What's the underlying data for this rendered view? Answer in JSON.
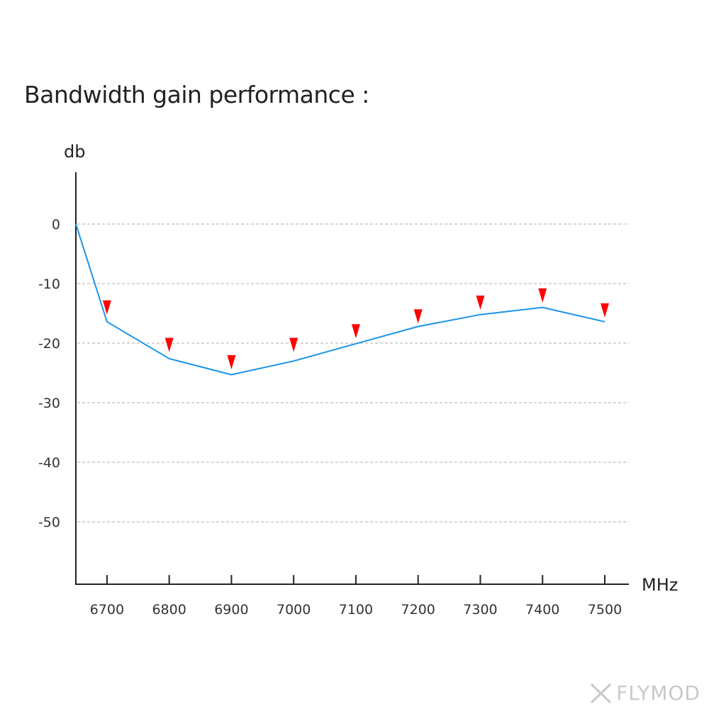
{
  "title": "Bandwidth gain performance :",
  "watermark": {
    "text": "FLYMOD"
  },
  "chart_data": {
    "type": "line",
    "ylabel": "db",
    "xlabel": "MHz",
    "ylim": [
      -60,
      0
    ],
    "xlim": [
      6650,
      7500
    ],
    "yticks": [
      0,
      -10,
      -20,
      -30,
      -40,
      -50
    ],
    "xticks": [
      6700,
      6800,
      6900,
      7000,
      7100,
      7200,
      7300,
      7400,
      7500
    ],
    "grid": "horizontal dashed",
    "series": [
      {
        "type": "line",
        "color": "#1a94e6",
        "x": [
          6650,
          6700,
          6800,
          6900,
          7000,
          7100,
          7200,
          7300,
          7400,
          7500
        ],
        "y": [
          0,
          -16.4,
          -22.6,
          -25.3,
          -23.0,
          -20.1,
          -17.2,
          -15.2,
          -14.0,
          -16.4
        ]
      },
      {
        "type": "marker",
        "marker": "down-triangle",
        "color": "#ff0000",
        "x": [
          6700,
          6800,
          6900,
          7000,
          7100,
          7200,
          7300,
          7400,
          7500
        ],
        "y": [
          -14.0,
          -20.3,
          -23.2,
          -20.3,
          -18.0,
          -15.5,
          -13.2,
          -12.0,
          -14.5
        ]
      }
    ]
  }
}
